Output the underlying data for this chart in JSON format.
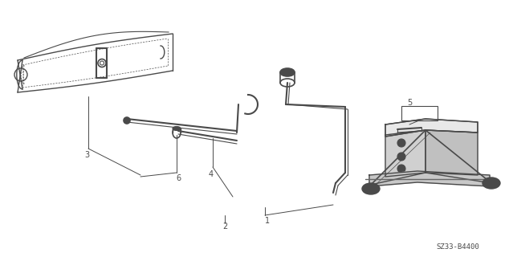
{
  "bg_color": "#ffffff",
  "line_color": "#4a4a4a",
  "figsize": [
    6.39,
    3.2
  ],
  "dpi": 100,
  "ref_code": "SZ33-B4400"
}
